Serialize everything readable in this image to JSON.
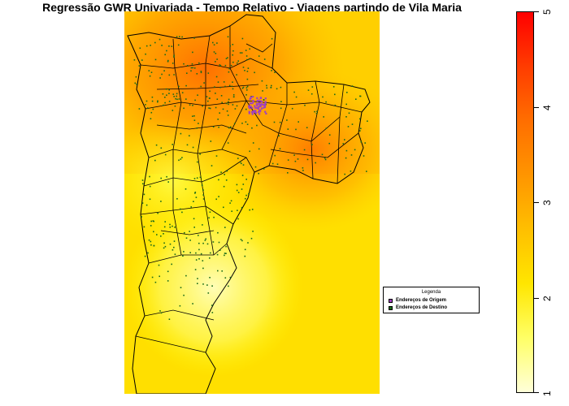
{
  "title": "Regressão GWR Univariada - Tempo Relativo - Viagens partindo de Vila Maria",
  "legend": {
    "title": "Legenda",
    "items": [
      {
        "label": "Endereços de Origem",
        "color": "#a040c0"
      },
      {
        "label": "Endereços de Destino",
        "color": "#1a6b1a"
      }
    ]
  },
  "colorbar": {
    "min": 1,
    "max": 5,
    "ticks": [
      "1",
      "2",
      "3",
      "4",
      "5"
    ],
    "colors": [
      "#ffffd9",
      "#ffff66",
      "#ffe600",
      "#ffbf00",
      "#ff9500",
      "#ff6e00",
      "#ff3c00",
      "#ff0000"
    ]
  },
  "origin_color": "#a040c0",
  "destination_color": "#1a6b1a"
}
